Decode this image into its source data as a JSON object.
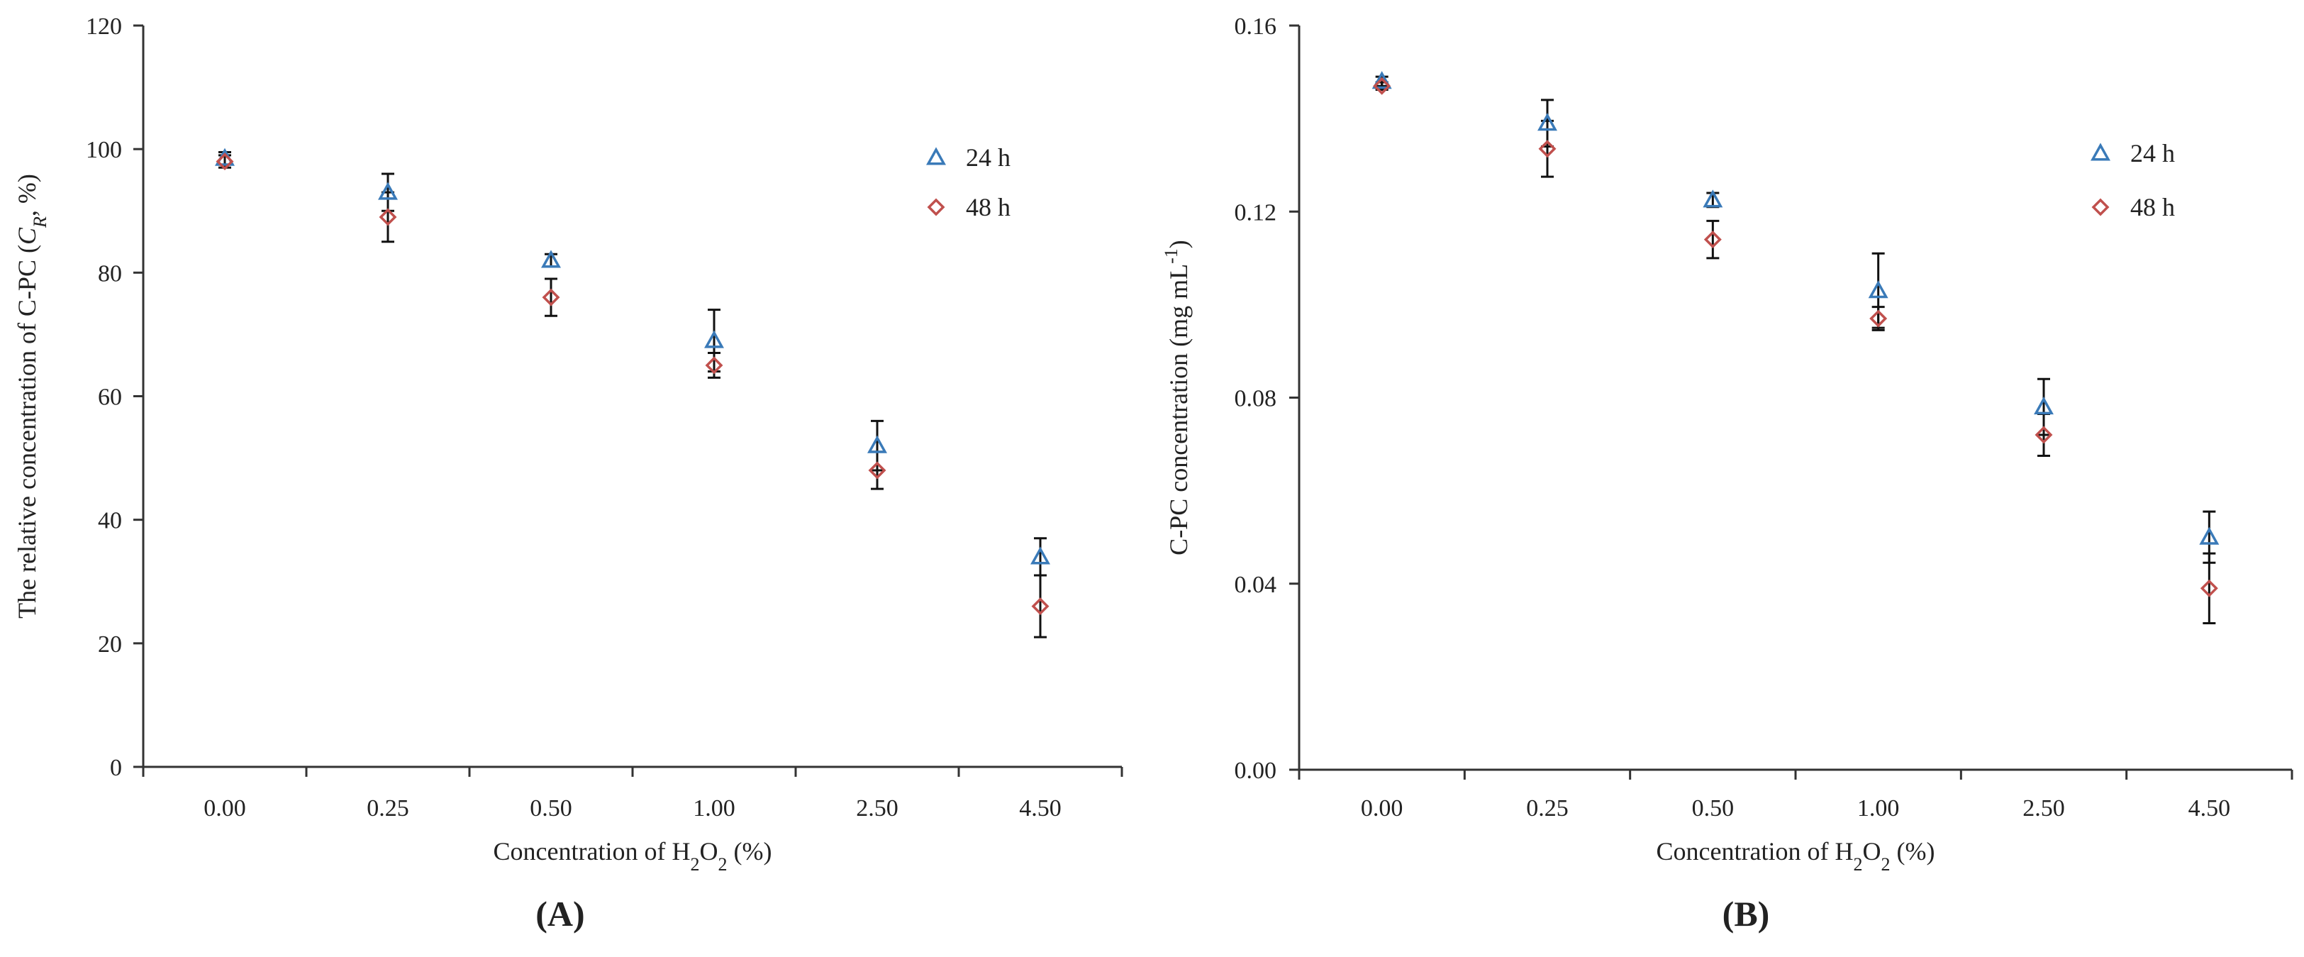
{
  "chart_data": [
    {
      "type": "scatter",
      "panel_label": "(A)",
      "ylabel": "The relative concentration of C-PC (C_R, %)",
      "ylabel_parts": {
        "main": "The relative concentration of C-PC (",
        "italic": "C",
        "sub": "R",
        "tail": ", %)"
      },
      "xlabel": "Concentration of H2O2 (%)",
      "xlabel_parts": {
        "main": "Concentration of H",
        "sub1": "2",
        "mid": "O",
        "sub2": "2",
        "tail": " (%)"
      },
      "categories": [
        "0.00",
        "0.25",
        "0.50",
        "1.00",
        "2.50",
        "4.50"
      ],
      "ylim": [
        0,
        120
      ],
      "yticks": [
        "0",
        "20",
        "40",
        "60",
        "80",
        "100",
        "120"
      ],
      "ytick_values": [
        0,
        20,
        40,
        60,
        80,
        100,
        120
      ],
      "legend_position": "top-right",
      "series": [
        {
          "name": "24 h",
          "marker": "triangle",
          "color": "#3a7ab8",
          "values": [
            98.5,
            93,
            82,
            69,
            52,
            34
          ],
          "err": [
            1,
            3,
            1,
            5,
            4,
            3
          ]
        },
        {
          "name": "48 h",
          "marker": "diamond",
          "color": "#c0504d",
          "values": [
            98,
            89,
            76,
            65,
            48,
            26
          ],
          "err": [
            1,
            4,
            3,
            2,
            3,
            5
          ]
        }
      ]
    },
    {
      "type": "scatter",
      "panel_label": "(B)",
      "ylabel": "C-PC concentration (mg mL-1)",
      "ylabel_parts": {
        "main": "C-PC concentration (mg mL",
        "sup": "-1",
        "tail": ")"
      },
      "xlabel": "Concentration of H2O2 (%)",
      "xlabel_parts": {
        "main": "Concentration of H",
        "sub1": "2",
        "mid": "O",
        "sub2": "2",
        "tail": " (%)"
      },
      "categories": [
        "0.00",
        "0.25",
        "0.50",
        "1.00",
        "2.50",
        "4.50"
      ],
      "ylim": [
        0,
        0.16
      ],
      "yticks": [
        "0.00",
        "0.04",
        "0.08",
        "0.12",
        "0.16"
      ],
      "ytick_values": [
        0,
        0.04,
        0.08,
        0.12,
        0.16
      ],
      "legend_position": "top-right",
      "series": [
        {
          "name": "24 h",
          "marker": "triangle",
          "color": "#3a7ab8",
          "values": [
            0.148,
            0.139,
            0.1225,
            0.103,
            0.078,
            0.05
          ],
          "err": [
            0.001,
            0.005,
            0.0015,
            0.008,
            0.006,
            0.0055
          ]
        },
        {
          "name": "48 h",
          "marker": "diamond",
          "color": "#c0504d",
          "values": [
            0.147,
            0.1335,
            0.114,
            0.097,
            0.072,
            0.039
          ],
          "err": [
            0.0008,
            0.006,
            0.004,
            0.0025,
            0.0045,
            0.0075
          ]
        }
      ]
    }
  ]
}
